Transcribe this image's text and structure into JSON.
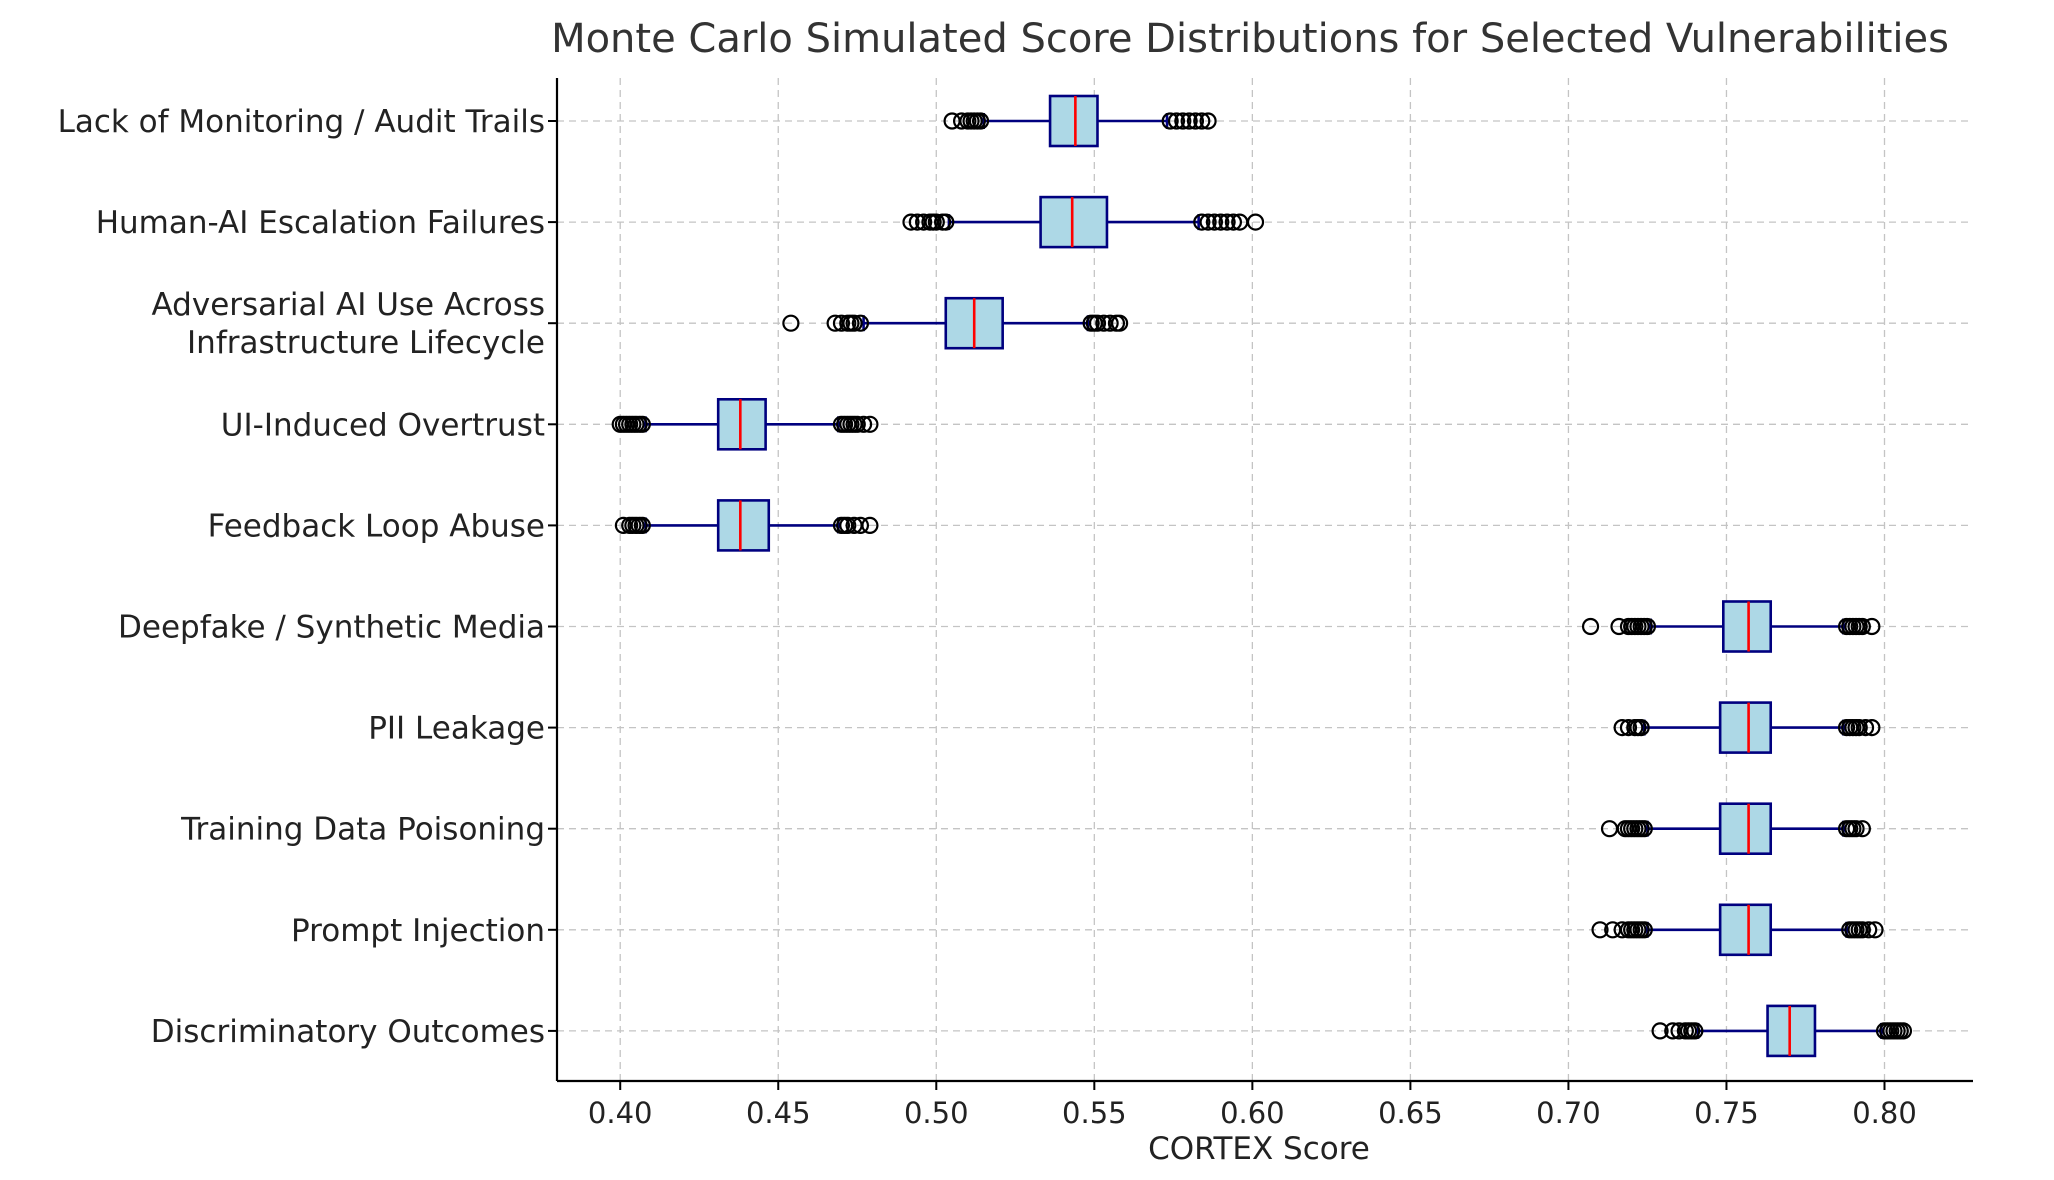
{
  "chart_data": {
    "type": "boxplot",
    "orientation": "horizontal",
    "title": "Monte Carlo Simulated Score Distributions for Selected Vulnerabilities",
    "xlabel": "CORTEX Score",
    "ylabel": "",
    "xlim": [
      0.38,
      0.828
    ],
    "xticks": [
      0.4,
      0.45,
      0.5,
      0.55,
      0.6,
      0.65,
      0.7,
      0.75,
      0.8
    ],
    "xtick_labels": [
      "0.40",
      "0.45",
      "0.50",
      "0.55",
      "0.60",
      "0.65",
      "0.70",
      "0.75",
      "0.80"
    ],
    "grid": true,
    "colors": {
      "box_fill": "#add8e6",
      "box_edge": "#00007f",
      "median": "#ff0000",
      "flier": "#000000"
    },
    "series": [
      {
        "name": "Discriminatory Outcomes",
        "lines": [
          "Discriminatory Outcomes"
        ],
        "whislo": 0.741,
        "q1": 0.763,
        "med": 0.77,
        "q3": 0.778,
        "whishi": 0.799,
        "fliers": [
          0.729,
          0.733,
          0.735,
          0.737,
          0.738,
          0.739,
          0.74,
          0.8,
          0.801,
          0.802,
          0.803,
          0.804,
          0.805,
          0.806
        ]
      },
      {
        "name": "Prompt Injection",
        "lines": [
          "Prompt Injection"
        ],
        "whislo": 0.725,
        "q1": 0.748,
        "med": 0.757,
        "q3": 0.764,
        "whishi": 0.788,
        "fliers": [
          0.71,
          0.714,
          0.717,
          0.719,
          0.72,
          0.721,
          0.722,
          0.723,
          0.724,
          0.789,
          0.79,
          0.791,
          0.792,
          0.793,
          0.795,
          0.797
        ]
      },
      {
        "name": "Training Data Poisoning",
        "lines": [
          "Training Data Poisoning"
        ],
        "whislo": 0.725,
        "q1": 0.748,
        "med": 0.757,
        "q3": 0.764,
        "whishi": 0.787,
        "fliers": [
          0.713,
          0.718,
          0.719,
          0.72,
          0.721,
          0.722,
          0.723,
          0.724,
          0.788,
          0.789,
          0.79,
          0.791,
          0.793
        ]
      },
      {
        "name": "PII Leakage",
        "lines": [
          "PII Leakage"
        ],
        "whislo": 0.724,
        "q1": 0.748,
        "med": 0.757,
        "q3": 0.764,
        "whishi": 0.787,
        "fliers": [
          0.717,
          0.719,
          0.721,
          0.722,
          0.723,
          0.788,
          0.789,
          0.79,
          0.791,
          0.792,
          0.794,
          0.796
        ]
      },
      {
        "name": "Deepfake / Synthetic Media",
        "lines": [
          "Deepfake / Synthetic Media"
        ],
        "whislo": 0.726,
        "q1": 0.749,
        "med": 0.757,
        "q3": 0.764,
        "whishi": 0.787,
        "fliers": [
          0.707,
          0.716,
          0.719,
          0.72,
          0.721,
          0.722,
          0.723,
          0.724,
          0.725,
          0.788,
          0.789,
          0.79,
          0.791,
          0.792,
          0.793,
          0.796
        ]
      },
      {
        "name": "Feedback Loop Abuse",
        "lines": [
          "Feedback Loop Abuse"
        ],
        "whislo": 0.408,
        "q1": 0.431,
        "med": 0.438,
        "q3": 0.447,
        "whishi": 0.469,
        "fliers": [
          0.401,
          0.403,
          0.404,
          0.405,
          0.406,
          0.407,
          0.47,
          0.471,
          0.472,
          0.474,
          0.476,
          0.479
        ]
      },
      {
        "name": "UI-Induced Overtrust",
        "lines": [
          "UI-Induced Overtrust"
        ],
        "whislo": 0.408,
        "q1": 0.431,
        "med": 0.438,
        "q3": 0.446,
        "whishi": 0.469,
        "fliers": [
          0.4,
          0.401,
          0.402,
          0.403,
          0.404,
          0.405,
          0.406,
          0.407,
          0.47,
          0.471,
          0.472,
          0.473,
          0.474,
          0.475,
          0.477,
          0.479
        ]
      },
      {
        "name": "Adversarial AI Use Across Infrastructure Lifecycle",
        "lines": [
          "Adversarial AI Use Across",
          "Infrastructure Lifecycle"
        ],
        "whislo": 0.477,
        "q1": 0.503,
        "med": 0.512,
        "q3": 0.521,
        "whishi": 0.548,
        "fliers": [
          0.454,
          0.468,
          0.47,
          0.472,
          0.473,
          0.474,
          0.476,
          0.549,
          0.55,
          0.551,
          0.553,
          0.555,
          0.557,
          0.558
        ]
      },
      {
        "name": "Human-AI Escalation Failures",
        "lines": [
          "Human-AI Escalation Failures"
        ],
        "whislo": 0.504,
        "q1": 0.533,
        "med": 0.543,
        "q3": 0.554,
        "whishi": 0.583,
        "fliers": [
          0.492,
          0.494,
          0.496,
          0.498,
          0.499,
          0.5,
          0.502,
          0.503,
          0.584,
          0.586,
          0.588,
          0.59,
          0.592,
          0.594,
          0.596,
          0.601
        ]
      },
      {
        "name": "Lack of Monitoring / Audit Trails",
        "lines": [
          "Lack of Monitoring / Audit Trails"
        ],
        "whislo": 0.515,
        "q1": 0.536,
        "med": 0.544,
        "q3": 0.551,
        "whishi": 0.573,
        "fliers": [
          0.505,
          0.508,
          0.51,
          0.511,
          0.512,
          0.513,
          0.514,
          0.574,
          0.576,
          0.578,
          0.58,
          0.582,
          0.584,
          0.586
        ]
      }
    ]
  }
}
